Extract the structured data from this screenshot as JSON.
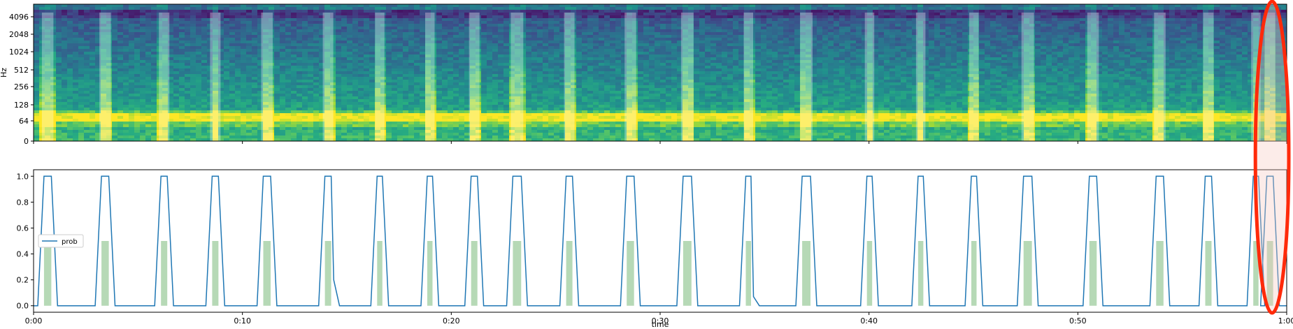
{
  "chart_data": [
    {
      "type": "heatmap",
      "title": "",
      "xlabel": "",
      "ylabel": "Hz",
      "yscale": "log",
      "yticks": [
        "0",
        "64",
        "128",
        "256",
        "512",
        "1024",
        "2048",
        "4096"
      ],
      "xlim": [
        0,
        60
      ],
      "colormap": "viridis",
      "highlight_color": "#ffffff",
      "onset_bands": [
        {
          "start": 0.5,
          "end": 0.85
        },
        {
          "start": 3.25,
          "end": 3.6
        },
        {
          "start": 6.1,
          "end": 6.4
        },
        {
          "start": 8.55,
          "end": 8.85
        },
        {
          "start": 11.0,
          "end": 11.35
        },
        {
          "start": 13.95,
          "end": 14.25
        },
        {
          "start": 16.45,
          "end": 16.7
        },
        {
          "start": 18.85,
          "end": 19.1
        },
        {
          "start": 20.95,
          "end": 21.25
        },
        {
          "start": 22.95,
          "end": 23.35
        },
        {
          "start": 25.5,
          "end": 25.8
        },
        {
          "start": 28.4,
          "end": 28.75
        },
        {
          "start": 31.1,
          "end": 31.5
        },
        {
          "start": 34.1,
          "end": 34.35
        },
        {
          "start": 36.8,
          "end": 37.2
        },
        {
          "start": 39.9,
          "end": 40.15
        },
        {
          "start": 42.35,
          "end": 42.6
        },
        {
          "start": 44.9,
          "end": 45.15
        },
        {
          "start": 47.4,
          "end": 47.8
        },
        {
          "start": 50.55,
          "end": 50.9
        },
        {
          "start": 53.75,
          "end": 54.1
        },
        {
          "start": 56.1,
          "end": 56.4
        },
        {
          "start": 58.4,
          "end": 58.65
        },
        {
          "start": 59.05,
          "end": 59.35
        }
      ]
    },
    {
      "type": "line",
      "title": "",
      "xlabel": "time",
      "ylabel": "",
      "xlim": [
        0,
        60
      ],
      "ylim": [
        -0.05,
        1.05
      ],
      "xticks": [
        "0:00",
        "0:10",
        "0:20",
        "0:30",
        "0:40",
        "0:50",
        "1:00"
      ],
      "yticks": [
        "0.0",
        "0.2",
        "0.4",
        "0.6",
        "0.8",
        "1.0"
      ],
      "legend": "top-left",
      "line_color": "#1f77b4",
      "fill_color": "#8fc48f",
      "series": [
        {
          "name": "prob",
          "pulses": [
            {
              "start": 0.5,
              "end": 0.85
            },
            {
              "start": 3.25,
              "end": 3.6
            },
            {
              "start": 6.1,
              "end": 6.4
            },
            {
              "start": 8.55,
              "end": 8.85
            },
            {
              "start": 11.0,
              "end": 11.35
            },
            {
              "start": 13.95,
              "end": 14.25,
              "tail": 0.2
            },
            {
              "start": 16.45,
              "end": 16.7
            },
            {
              "start": 18.85,
              "end": 19.1
            },
            {
              "start": 20.95,
              "end": 21.25
            },
            {
              "start": 22.95,
              "end": 23.35
            },
            {
              "start": 25.5,
              "end": 25.8
            },
            {
              "start": 28.4,
              "end": 28.75
            },
            {
              "start": 31.1,
              "end": 31.5
            },
            {
              "start": 34.1,
              "end": 34.35,
              "tail": 0.07
            },
            {
              "start": 36.8,
              "end": 37.2
            },
            {
              "start": 39.9,
              "end": 40.15
            },
            {
              "start": 42.35,
              "end": 42.6
            },
            {
              "start": 44.9,
              "end": 45.15
            },
            {
              "start": 47.4,
              "end": 47.8
            },
            {
              "start": 50.55,
              "end": 50.9
            },
            {
              "start": 53.75,
              "end": 54.1
            },
            {
              "start": 56.1,
              "end": 56.4
            },
            {
              "start": 58.4,
              "end": 58.65
            },
            {
              "start": 59.05,
              "end": 59.35
            }
          ]
        }
      ],
      "onsets": [
        {
          "start": 0.5,
          "end": 0.85,
          "value": 0.5
        },
        {
          "start": 3.25,
          "end": 3.6,
          "value": 0.5
        },
        {
          "start": 6.1,
          "end": 6.4,
          "value": 0.5
        },
        {
          "start": 8.55,
          "end": 8.85,
          "value": 0.5
        },
        {
          "start": 11.0,
          "end": 11.35,
          "value": 0.5
        },
        {
          "start": 13.95,
          "end": 14.25,
          "value": 0.5
        },
        {
          "start": 16.45,
          "end": 16.7,
          "value": 0.5
        },
        {
          "start": 18.85,
          "end": 19.1,
          "value": 0.5
        },
        {
          "start": 20.95,
          "end": 21.25,
          "value": 0.5
        },
        {
          "start": 22.95,
          "end": 23.35,
          "value": 0.5
        },
        {
          "start": 25.5,
          "end": 25.8,
          "value": 0.5
        },
        {
          "start": 28.4,
          "end": 28.75,
          "value": 0.5
        },
        {
          "start": 31.1,
          "end": 31.5,
          "value": 0.5
        },
        {
          "start": 34.1,
          "end": 34.35,
          "value": 0.5
        },
        {
          "start": 36.8,
          "end": 37.2,
          "value": 0.5
        },
        {
          "start": 39.9,
          "end": 40.15,
          "value": 0.5
        },
        {
          "start": 42.35,
          "end": 42.6,
          "value": 0.5
        },
        {
          "start": 44.9,
          "end": 45.15,
          "value": 0.5
        },
        {
          "start": 47.4,
          "end": 47.8,
          "value": 0.5
        },
        {
          "start": 50.55,
          "end": 50.9,
          "value": 0.5
        },
        {
          "start": 53.75,
          "end": 54.1,
          "value": 0.5
        },
        {
          "start": 56.1,
          "end": 56.4,
          "value": 0.5
        },
        {
          "start": 58.4,
          "end": 58.65,
          "value": 0.5
        },
        {
          "start": 59.05,
          "end": 59.35,
          "value": 0.5
        }
      ]
    }
  ],
  "annotation": {
    "shape": "ellipse",
    "color": "#ff2a0a",
    "fill": "#f5c8c0",
    "x_center": 59.3,
    "x_halfwidth": 0.8
  }
}
